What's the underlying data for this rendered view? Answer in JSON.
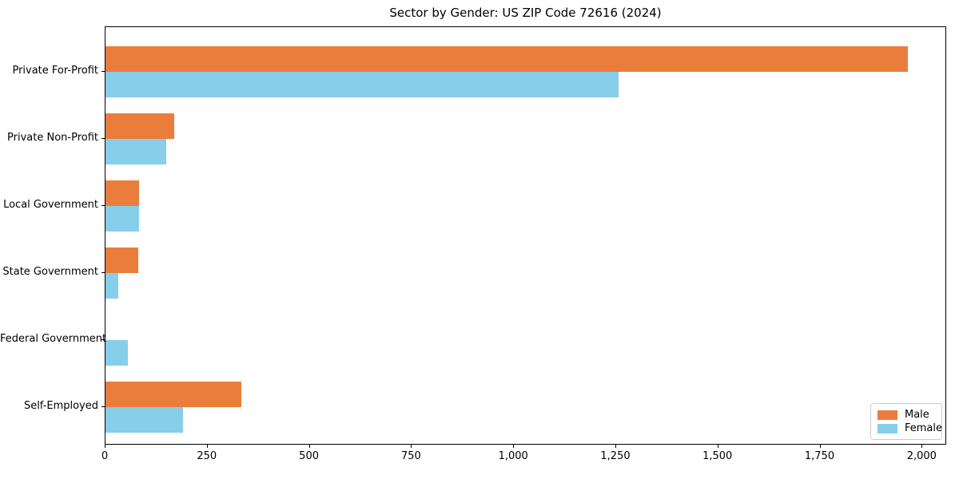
{
  "chart_data": {
    "type": "bar",
    "orientation": "horizontal",
    "title": "Sector by Gender: US ZIP Code 72616 (2024)",
    "categories": [
      "Private For-Profit",
      "Private Non-Profit",
      "Local Government",
      "State Government",
      "Federal Government",
      "Self-Employed"
    ],
    "series": [
      {
        "name": "Male",
        "color": "#eb7d3c",
        "values": [
          1965,
          168,
          83,
          80,
          0,
          332
        ]
      },
      {
        "name": "Female",
        "color": "#87ceeb",
        "values": [
          1256,
          149,
          83,
          31,
          55,
          190
        ]
      }
    ],
    "xlim": [
      0,
      2060
    ],
    "xticks": {
      "values": [
        0,
        250,
        500,
        750,
        1000,
        1250,
        1500,
        1750,
        2000
      ],
      "labels": [
        "0",
        "250",
        "500",
        "750",
        "1,000",
        "1,250",
        "1,500",
        "1,750",
        "2,000"
      ]
    },
    "xlabel": "",
    "ylabel": "",
    "grid": false,
    "legend_position": "lower right",
    "plot_border_color": "#000000",
    "background_color": "#ffffff"
  }
}
